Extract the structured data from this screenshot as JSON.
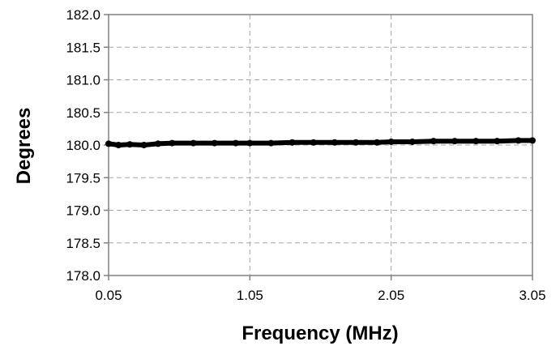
{
  "chart_data": {
    "type": "line",
    "title": "",
    "xlabel": "Frequency (MHz)",
    "ylabel": "Degrees",
    "xlim": [
      0.05,
      3.05
    ],
    "ylim": [
      178.0,
      182.0
    ],
    "x_ticks": [
      0.05,
      1.05,
      2.05,
      3.05
    ],
    "x_tick_labels": [
      "0.05",
      "1.05",
      "2.05",
      "3.05"
    ],
    "y_ticks": [
      178.0,
      178.5,
      179.0,
      179.5,
      180.0,
      180.5,
      181.0,
      181.5,
      182.0
    ],
    "y_tick_labels": [
      "178.0",
      "178.5",
      "179.0",
      "179.5",
      "180.0",
      "180.5",
      "181.0",
      "181.5",
      "182.0"
    ],
    "grid": true,
    "legend": "none",
    "series": [
      {
        "color": "#000000",
        "marker": "circle",
        "x": [
          0.05,
          0.12,
          0.2,
          0.3,
          0.4,
          0.5,
          0.65,
          0.8,
          0.95,
          1.05,
          1.2,
          1.35,
          1.5,
          1.65,
          1.8,
          1.95,
          2.05,
          2.2,
          2.35,
          2.5,
          2.65,
          2.8,
          2.95,
          3.05
        ],
        "y": [
          180.02,
          180.0,
          180.01,
          180.0,
          180.02,
          180.03,
          180.03,
          180.03,
          180.03,
          180.03,
          180.03,
          180.04,
          180.04,
          180.04,
          180.04,
          180.04,
          180.05,
          180.05,
          180.06,
          180.06,
          180.06,
          180.06,
          180.07,
          180.07
        ]
      }
    ]
  }
}
